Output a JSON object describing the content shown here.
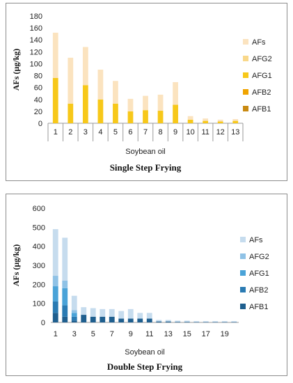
{
  "chart_data": [
    {
      "type": "bar",
      "stacked": true,
      "title": "Single Step Frying",
      "xlabel": "Soybean oil",
      "ylabel": "AFs (µg/kg)",
      "ylim": [
        0,
        180
      ],
      "yticks": [
        0,
        20,
        40,
        60,
        80,
        100,
        120,
        140,
        160,
        180
      ],
      "categories": [
        "1",
        "2",
        "3",
        "4",
        "5",
        "6",
        "7",
        "8",
        "9",
        "10",
        "11",
        "12",
        "13"
      ],
      "legend_position": "right",
      "series": [
        {
          "name": "AFB1",
          "color": "#c98a12",
          "values": [
            0,
            0,
            0,
            0,
            0,
            0,
            0,
            0,
            0,
            0,
            0,
            0,
            0
          ]
        },
        {
          "name": "AFB2",
          "color": "#f0a400",
          "values": [
            0,
            0,
            0,
            0,
            0,
            0,
            0,
            0,
            0,
            0,
            0,
            0,
            0
          ]
        },
        {
          "name": "AFG1",
          "color": "#f7c81a",
          "values": [
            76,
            33,
            64,
            40,
            33,
            20,
            22,
            21,
            31,
            6,
            4,
            3,
            4
          ]
        },
        {
          "name": "AFG2",
          "color": "#f9d88a",
          "values": [
            0,
            0,
            0,
            0,
            0,
            0,
            0,
            0,
            0,
            0,
            0,
            0,
            0
          ]
        },
        {
          "name": "AFs",
          "color": "#fbe3bf",
          "values": [
            76,
            77,
            64,
            50,
            38,
            21,
            24,
            27,
            38,
            6,
            4,
            3,
            3
          ]
        }
      ]
    },
    {
      "type": "bar",
      "stacked": true,
      "title": "Double Step Frying",
      "xlabel": "Soybean oil",
      "ylabel": "AFs (µg/kg)",
      "ylim": [
        0,
        600
      ],
      "yticks": [
        0,
        100,
        200,
        300,
        400,
        500,
        600
      ],
      "categories": [
        "1",
        "2",
        "3",
        "4",
        "5",
        "6",
        "7",
        "8",
        "9",
        "10",
        "11",
        "12",
        "13",
        "14",
        "15",
        "16",
        "17",
        "18",
        "19",
        "20"
      ],
      "tick_labels": [
        "1",
        "",
        "3",
        "",
        "5",
        "",
        "7",
        "",
        "9",
        "",
        "11",
        "",
        "13",
        "",
        "15",
        "",
        "17",
        "",
        "19",
        ""
      ],
      "legend_position": "right",
      "series": [
        {
          "name": "AFB1",
          "color": "#1f5f8f",
          "values": [
            50,
            30,
            10,
            40,
            30,
            30,
            30,
            20,
            20,
            20,
            20,
            5,
            5,
            3,
            3,
            2,
            2,
            2,
            2,
            2
          ]
        },
        {
          "name": "AFB2",
          "color": "#2a7bb3",
          "values": [
            60,
            60,
            20,
            0,
            0,
            0,
            0,
            0,
            0,
            0,
            0,
            0,
            0,
            0,
            0,
            0,
            0,
            0,
            0,
            0
          ]
        },
        {
          "name": "AFG1",
          "color": "#4aa3d8",
          "values": [
            80,
            90,
            20,
            0,
            0,
            0,
            0,
            0,
            0,
            0,
            0,
            0,
            0,
            0,
            0,
            0,
            0,
            0,
            0,
            0
          ]
        },
        {
          "name": "AFG2",
          "color": "#8fc2e6",
          "values": [
            55,
            40,
            15,
            0,
            0,
            0,
            0,
            0,
            0,
            0,
            0,
            0,
            0,
            0,
            0,
            0,
            0,
            0,
            0,
            0
          ]
        },
        {
          "name": "AFs",
          "color": "#c6dcee",
          "values": [
            245,
            225,
            75,
            40,
            45,
            40,
            40,
            40,
            50,
            30,
            30,
            8,
            8,
            6,
            6,
            4,
            4,
            4,
            4,
            4
          ]
        }
      ]
    }
  ]
}
